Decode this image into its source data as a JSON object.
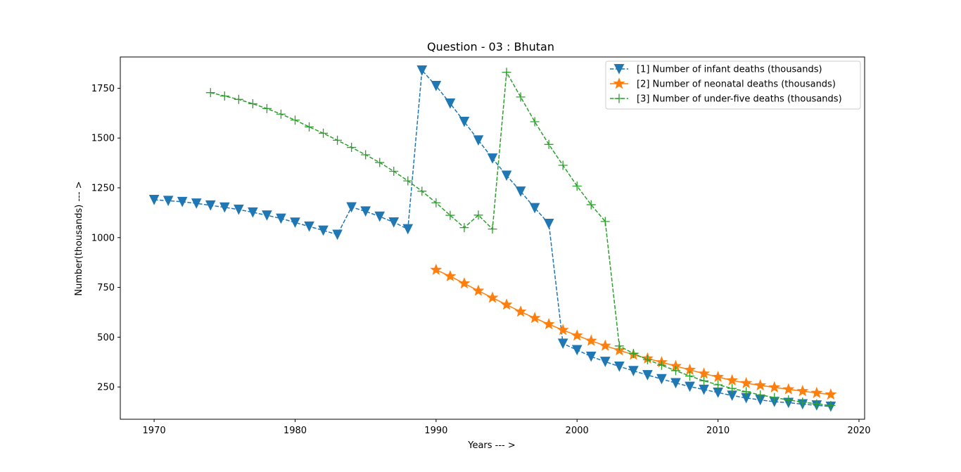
{
  "chart_data": {
    "type": "line",
    "title": "Question - 03 : Bhutan",
    "xlabel": "Years --- >",
    "ylabel": "Number(thousands) --- >",
    "xlim": [
      1967.6,
      2020.4
    ],
    "ylim": [
      88,
      1907
    ],
    "xticks": [
      1970,
      1980,
      1990,
      2000,
      2010,
      2020
    ],
    "yticks": [
      250,
      500,
      750,
      1000,
      1250,
      1500,
      1750
    ],
    "grid": false,
    "legend_position": "top-right",
    "series": [
      {
        "name": "[1] Number of infant deaths (thousands)",
        "color": "#1f77b4",
        "marker": "triangle-down",
        "linestyle": "dashed",
        "x": [
          1970,
          1971,
          1972,
          1973,
          1974,
          1975,
          1976,
          1977,
          1978,
          1979,
          1980,
          1981,
          1982,
          1983,
          1984,
          1985,
          1986,
          1987,
          1988,
          1989,
          1990,
          1991,
          1992,
          1993,
          1994,
          1995,
          1996,
          1997,
          1998,
          1999,
          2000,
          2001,
          2002,
          2003,
          2004,
          2005,
          2006,
          2007,
          2008,
          2009,
          2010,
          2011,
          2012,
          2013,
          2014,
          2015,
          2016,
          2017,
          2018
        ],
        "y": [
          1190,
          1185,
          1180,
          1172,
          1162,
          1152,
          1141,
          1127,
          1112,
          1096,
          1076,
          1056,
          1036,
          1015,
          1153,
          1132,
          1106,
          1077,
          1043,
          1840,
          1762,
          1674,
          1582,
          1489,
          1398,
          1312,
          1232,
          1149,
          1070,
          468,
          436,
          403,
          377,
          353,
          331,
          310,
          290,
          270,
          252,
          237,
          222,
          207,
          195,
          185,
          176,
          171,
          164,
          158,
          152
        ]
      },
      {
        "name": "[2] Number of neonatal deaths (thousands)",
        "color": "#ff7f0e",
        "marker": "star",
        "linestyle": "solid",
        "x": [
          1990,
          1991,
          1992,
          1993,
          1994,
          1995,
          1996,
          1997,
          1998,
          1999,
          2000,
          2001,
          2002,
          2003,
          2004,
          2005,
          2006,
          2007,
          2008,
          2009,
          2010,
          2011,
          2012,
          2013,
          2014,
          2015,
          2016,
          2017,
          2018
        ],
        "y": [
          838,
          806,
          770,
          733,
          698,
          663,
          628,
          596,
          565,
          536,
          508,
          482,
          457,
          434,
          412,
          393,
          374,
          355,
          336,
          317,
          300,
          283,
          269,
          258,
          248,
          238,
          229,
          220,
          212
        ]
      },
      {
        "name": "[3] Number of under-five deaths (thousands)",
        "color": "#2ca02c",
        "marker": "plus",
        "linestyle": "dashed",
        "x": [
          1974,
          1975,
          1976,
          1977,
          1978,
          1979,
          1980,
          1981,
          1982,
          1983,
          1984,
          1985,
          1986,
          1987,
          1988,
          1989,
          1990,
          1991,
          1992,
          1993,
          1994,
          1995,
          1996,
          1997,
          1998,
          1999,
          2000,
          2001,
          2002,
          2003,
          2004,
          2005,
          2006,
          2007,
          2008,
          2009,
          2010,
          2011,
          2012,
          2013,
          2014,
          2015,
          2016,
          2017,
          2018
        ],
        "y": [
          1728,
          1711,
          1694,
          1672,
          1648,
          1620,
          1590,
          1556,
          1524,
          1489,
          1453,
          1416,
          1377,
          1333,
          1285,
          1233,
          1175,
          1112,
          1050,
          1113,
          1043,
          1830,
          1706,
          1582,
          1468,
          1363,
          1259,
          1165,
          1081,
          456,
          418,
          387,
          359,
          332,
          305,
          281,
          261,
          243,
          226,
          210,
          197,
          185,
          174,
          165,
          157
        ]
      }
    ]
  }
}
